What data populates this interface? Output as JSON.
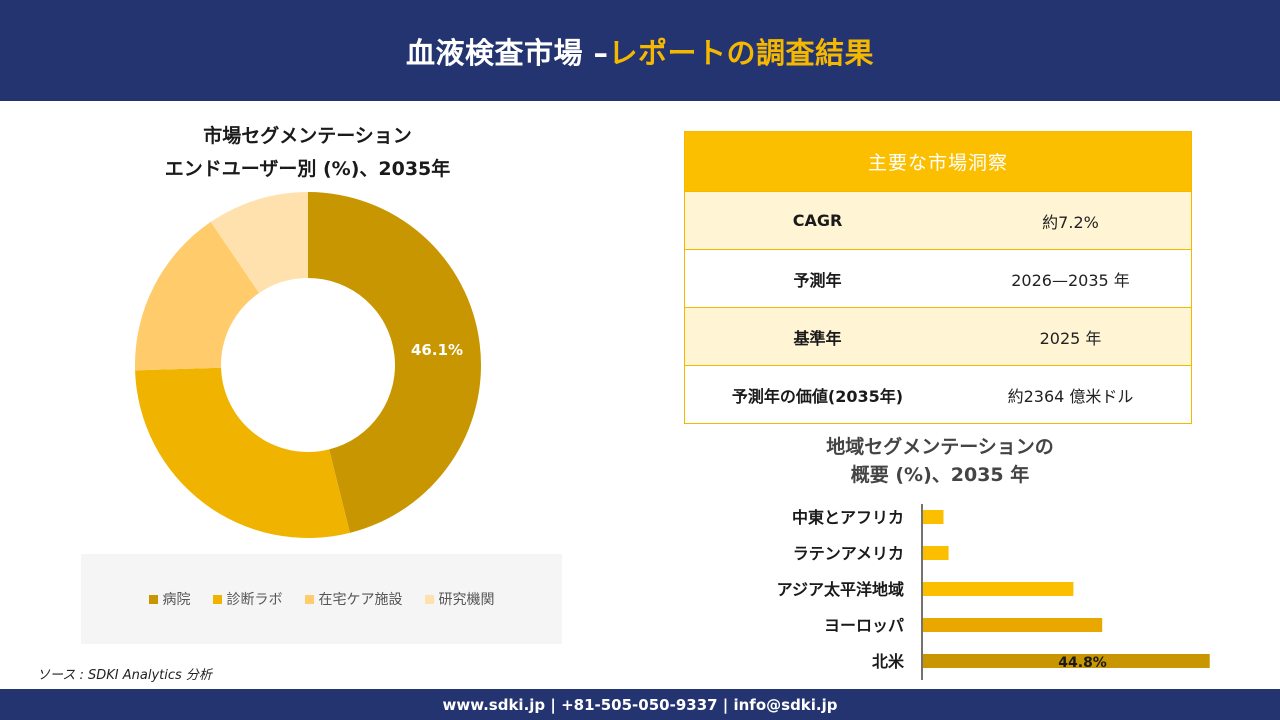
{
  "header": {
    "title_main": "血液検査市場 –",
    "title_accent": "レポートの調査結果"
  },
  "donut": {
    "title_line1": "市場セグメンテーション",
    "title_line2": "エンドユーザー別 (%)、2035年"
  },
  "insights": {
    "heading": "主要な市場洞察",
    "rows": [
      {
        "label": "CAGR",
        "value": "約7.2%"
      },
      {
        "label": "予測年",
        "value": "2026—2035 年"
      },
      {
        "label": "基準年",
        "value": "2025 年"
      },
      {
        "label": "予測年の価値(2035年)",
        "value": "約2364 億米ドル"
      }
    ]
  },
  "bar_section": {
    "title_line1": "地域セグメンテーションの",
    "title_line2": "概要 (%)、2035 年"
  },
  "source": "ソース : SDKI Analytics 分析",
  "footer": {
    "contact": "www.sdki.jp | +81-505-050-9337 | info@sdki.jp"
  },
  "chart_data": [
    {
      "type": "pie",
      "variant": "donut",
      "categories": [
        "病院",
        "診断ラボ",
        "在宅ケア施設",
        "研究機関"
      ],
      "values": [
        46.1,
        28.4,
        16.0,
        9.5
      ],
      "colors": [
        "#c89600",
        "#f0b400",
        "#ffcb6b",
        "#ffe1ad"
      ],
      "data_labels": [
        "46.1%",
        "",
        "",
        ""
      ],
      "legend_position": "bottom"
    },
    {
      "type": "bar",
      "orientation": "horizontal",
      "categories": [
        "中東とアフリカ",
        "ラテンアメリカ",
        "アジア太平洋地域",
        "ヨーロッパ",
        "北米"
      ],
      "values": [
        3.2,
        4.0,
        23.5,
        28.0,
        44.8
      ],
      "colors": [
        "#fcbf00",
        "#fcbf00",
        "#fcbf00",
        "#e8a800",
        "#c89600"
      ],
      "data_labels": [
        "",
        "",
        "",
        "",
        "44.8%"
      ],
      "xlim": [
        0,
        45
      ]
    }
  ]
}
